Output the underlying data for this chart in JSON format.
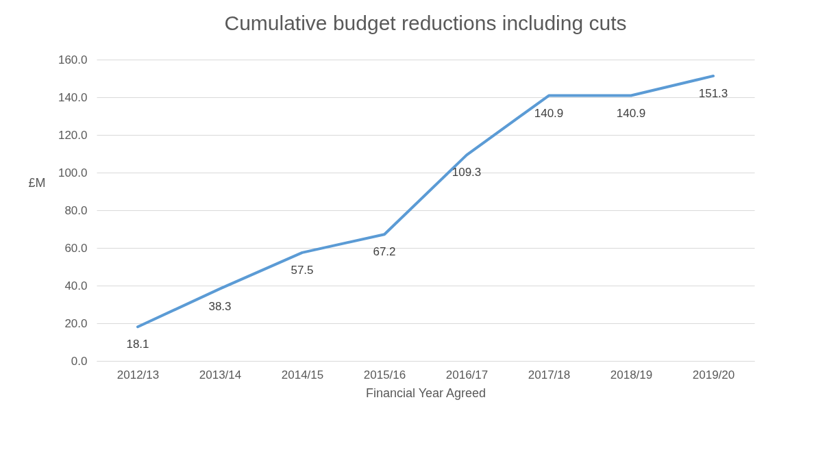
{
  "chart_data": {
    "type": "line",
    "title": "Cumulative budget reductions including cuts",
    "xlabel": "Financial Year Agreed",
    "ylabel": "£M",
    "categories": [
      "2012/13",
      "2013/14",
      "2014/15",
      "2015/16",
      "2016/17",
      "2017/18",
      "2018/19",
      "2019/20"
    ],
    "series": [
      {
        "color": "#5b9bd5",
        "values": [
          18.1,
          38.3,
          57.5,
          67.2,
          109.3,
          140.9,
          140.9,
          151.3
        ]
      }
    ],
    "ylim": [
      0,
      160
    ],
    "yticks": [
      {
        "value": 0,
        "label": "0.0"
      },
      {
        "value": 20,
        "label": "20.0"
      },
      {
        "value": 40,
        "label": "40.0"
      },
      {
        "value": 60,
        "label": "60.0"
      },
      {
        "value": 80,
        "label": "80.0"
      },
      {
        "value": 100,
        "label": "100.0"
      },
      {
        "value": 120,
        "label": "120.0"
      },
      {
        "value": 140,
        "label": "140.0"
      },
      {
        "value": 160,
        "label": "160.0"
      }
    ],
    "grid": "y",
    "data_labels": true,
    "legend": false,
    "marker": "none",
    "line_style": "solid"
  }
}
